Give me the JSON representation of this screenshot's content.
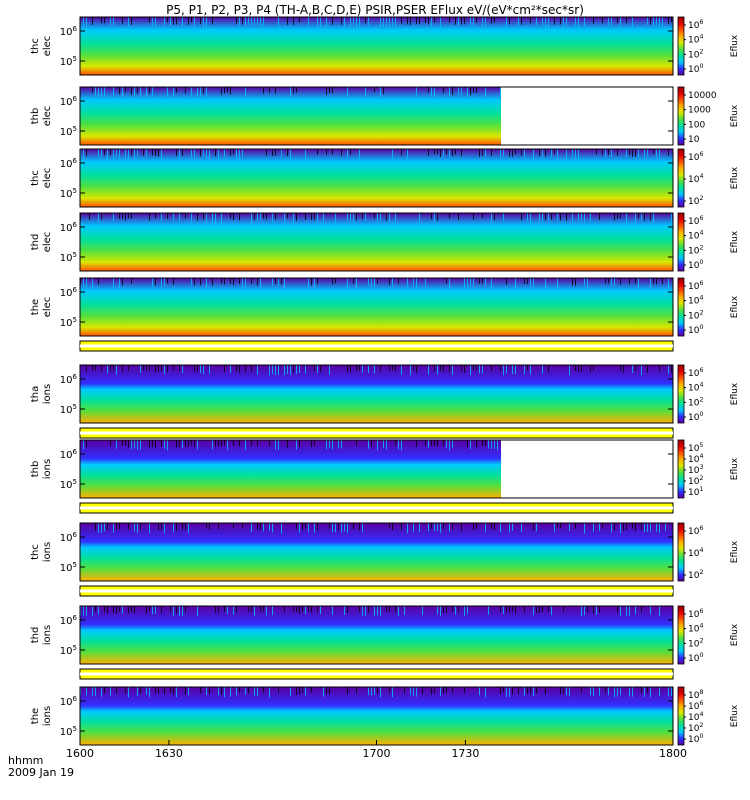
{
  "title": "P5, P1, P2, P3, P4 (TH-A,B,C,D,E) PSIR,PSER EFlux eV/(eV*cm²*sec*sr)",
  "footer": {
    "time_label": "hhmm",
    "date_label": "2009 Jan 19"
  },
  "colors": {
    "colormap": [
      "#5a00a0",
      "#3030ff",
      "#00c8ff",
      "#00e0a0",
      "#50e040",
      "#d8e800",
      "#ffb000",
      "#ff5000",
      "#e00000",
      "#9a0000"
    ],
    "fill_bar": "#ffff00"
  },
  "chart_data": {
    "type": "heatmap",
    "x": {
      "tick_labels": [
        "1600",
        "1630",
        "1700",
        "1730",
        "1800"
      ],
      "tick_values": [
        1600,
        1630,
        1700,
        1730,
        1800
      ],
      "range": [
        "16:00",
        "18:00"
      ]
    },
    "panels": [
      {
        "name": "thc elec",
        "y_label_1": "thc",
        "y_label_2": "elec",
        "y_ticks": [
          "10^6",
          "10^5"
        ],
        "cbar_label": "Eflux",
        "cbar_ticks": [
          "10^6",
          "10^4",
          "10^2",
          "10^0"
        ],
        "data_end": 1800,
        "fill_bar_below": false
      },
      {
        "name": "thb elec",
        "y_label_1": "thb",
        "y_label_2": "elec",
        "y_ticks": [
          "10^6",
          "10^5"
        ],
        "cbar_label": "Eflux",
        "cbar_ticks": [
          "10000",
          "1000",
          "100",
          "10"
        ],
        "data_end": 1742,
        "fill_bar_below": false
      },
      {
        "name": "thc elec",
        "y_label_1": "thc",
        "y_label_2": "elec",
        "y_ticks": [
          "10^6",
          "10^5"
        ],
        "cbar_label": "Eflux",
        "cbar_ticks": [
          "10^6",
          "10^4",
          "10^2"
        ],
        "data_end": 1800,
        "fill_bar_below": false
      },
      {
        "name": "thd elec",
        "y_label_1": "thd",
        "y_label_2": "elec",
        "y_ticks": [
          "10^6",
          "10^5"
        ],
        "cbar_label": "Eflux",
        "cbar_ticks": [
          "10^6",
          "10^4",
          "10^2",
          "10^0"
        ],
        "data_end": 1800,
        "fill_bar_below": false
      },
      {
        "name": "the elec",
        "y_label_1": "the",
        "y_label_2": "elec",
        "y_ticks": [
          "10^6",
          "10^5"
        ],
        "cbar_label": "Eflux",
        "cbar_ticks": [
          "10^6",
          "10^4",
          "10^2",
          "10^0"
        ],
        "data_end": 1800,
        "fill_bar_below": true
      },
      {
        "name": "tha ions",
        "y_label_1": "tha",
        "y_label_2": "ions",
        "y_ticks": [
          "10^6",
          "10^5"
        ],
        "cbar_label": "Eflux",
        "cbar_ticks": [
          "10^6",
          "10^4",
          "10^2",
          "10^0"
        ],
        "data_end": 1800,
        "fill_bar_below": true
      },
      {
        "name": "thb ions",
        "y_label_1": "thb",
        "y_label_2": "ions",
        "y_ticks": [
          "10^6",
          "10^5"
        ],
        "cbar_label": "Eflux",
        "cbar_ticks": [
          "10^5",
          "10^4",
          "10^3",
          "10^2",
          "10^1"
        ],
        "data_end": 1742,
        "fill_bar_below": true
      },
      {
        "name": "thc ions",
        "y_label_1": "thc",
        "y_label_2": "ions",
        "y_ticks": [
          "10^6",
          "10^5"
        ],
        "cbar_label": "Eflux",
        "cbar_ticks": [
          "10^6",
          "10^4",
          "10^2"
        ],
        "data_end": 1800,
        "fill_bar_below": true
      },
      {
        "name": "thd ions",
        "y_label_1": "thd",
        "y_label_2": "ions",
        "y_ticks": [
          "10^6",
          "10^5"
        ],
        "cbar_label": "Eflux",
        "cbar_ticks": [
          "10^6",
          "10^4",
          "10^2",
          "10^0"
        ],
        "data_end": 1800,
        "fill_bar_below": true
      },
      {
        "name": "the ions",
        "y_label_1": "the",
        "y_label_2": "ions",
        "y_ticks": [
          "10^6",
          "10^5"
        ],
        "cbar_label": "Eflux",
        "cbar_ticks": [
          "10^8",
          "10^6",
          "10^4",
          "10^2",
          "10^0"
        ],
        "data_end": 1800,
        "fill_bar_below": false
      }
    ]
  }
}
